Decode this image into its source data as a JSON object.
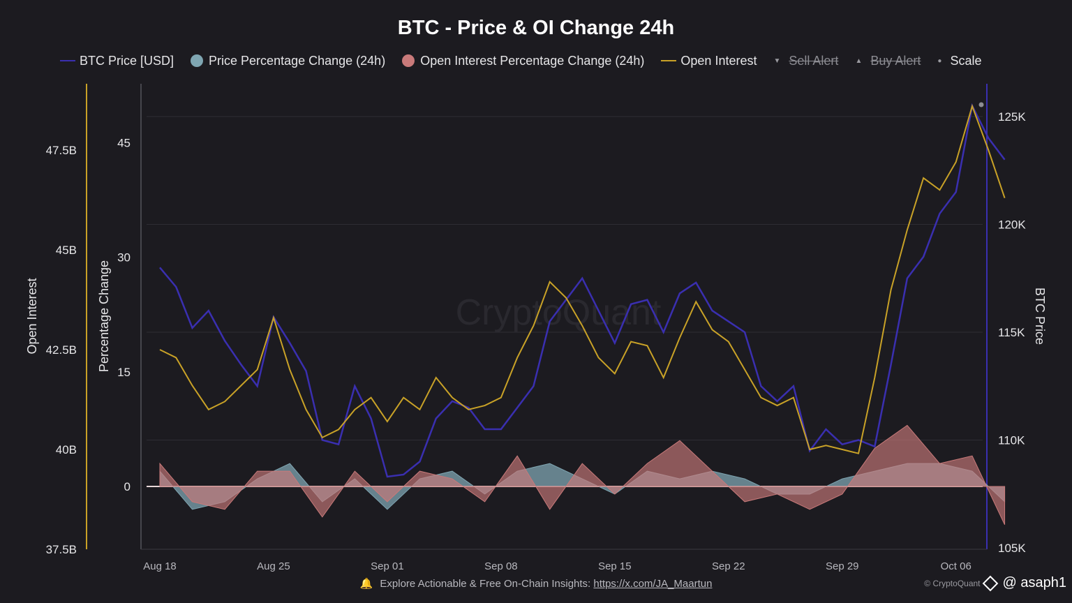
{
  "title": "BTC - Price & OI Change 24h",
  "legend": [
    {
      "label": "BTC Price [USD]",
      "kind": "line",
      "color": "#3a2fb0",
      "struck": false
    },
    {
      "label": "Price Percentage Change (24h)",
      "kind": "dot",
      "color": "#7fa6b2",
      "struck": false
    },
    {
      "label": "Open Interest Percentage Change (24h)",
      "kind": "dot",
      "color": "#c97a7a",
      "struck": false
    },
    {
      "label": "Open Interest",
      "kind": "line",
      "color": "#c9a227",
      "struck": false
    },
    {
      "label": "Sell Alert",
      "kind": "small",
      "symbol": "▼",
      "struck": true
    },
    {
      "label": "Buy Alert",
      "kind": "small",
      "symbol": "▲",
      "struck": true
    },
    {
      "label": "Scale",
      "kind": "small",
      "symbol": "●",
      "struck": false
    }
  ],
  "watermark": "CryptoQuant",
  "footer": {
    "text": "Explore Actionable & Free On-Chain Insights: ",
    "link": "https://x.com/JA_Maartun"
  },
  "credit": {
    "source": "© CryptoQuant",
    "user": "@ asaph1"
  },
  "chart_data": {
    "type": "line",
    "x_ticks": [
      "Aug 18",
      "Aug 25",
      "Sep 01",
      "Sep 08",
      "Sep 15",
      "Sep 22",
      "Sep 29",
      "Oct 06"
    ],
    "y_left_oi": {
      "label": "Open Interest",
      "ticks": [
        "37.5B",
        "40B",
        "42.5B",
        "45B",
        "47.5B"
      ],
      "range": [
        37.5,
        49.1
      ],
      "unit": "B"
    },
    "y_left_pct": {
      "label": "Percentage Change",
      "ticks": [
        "0",
        "15",
        "30",
        "45"
      ],
      "range": [
        -8,
        50.5
      ]
    },
    "y_right_price": {
      "label": "BTC Price",
      "ticks": [
        "105K",
        "110K",
        "115K",
        "120K",
        "125K"
      ],
      "range": [
        105000,
        126500
      ]
    },
    "x_range_days": [
      0,
      52
    ],
    "series": [
      {
        "name": "BTC Price [USD]",
        "axis": "price",
        "color": "#3a2fb0",
        "x": [
          0,
          1,
          2,
          3,
          4,
          5,
          6,
          7,
          8,
          9,
          10,
          11,
          12,
          13,
          14,
          15,
          16,
          17,
          18,
          19,
          20,
          21,
          22,
          23,
          24,
          25,
          26,
          27,
          28,
          29,
          30,
          31,
          32,
          33,
          34,
          35,
          36,
          37,
          38,
          39,
          40,
          41,
          42,
          43,
          44,
          45,
          46,
          47,
          48,
          49,
          50,
          51,
          52
        ],
        "y": [
          118000,
          117100,
          115200,
          116000,
          114600,
          113500,
          112500,
          115700,
          114500,
          113200,
          110000,
          109800,
          112500,
          111000,
          108300,
          108400,
          109000,
          111000,
          111800,
          111500,
          110500,
          110500,
          111500,
          112500,
          115500,
          116500,
          117500,
          116000,
          114500,
          116300,
          116500,
          115000,
          116800,
          117300,
          116000,
          115500,
          115000,
          112500,
          111800,
          112500,
          109500,
          110500,
          109800,
          110000,
          109700,
          113500,
          117500,
          118500,
          120500,
          121500,
          125500,
          124000,
          123000
        ]
      },
      {
        "name": "Open Interest",
        "axis": "oi",
        "color": "#c9a227",
        "x": [
          0,
          1,
          2,
          3,
          4,
          5,
          6,
          7,
          8,
          9,
          10,
          11,
          12,
          13,
          14,
          15,
          16,
          17,
          18,
          19,
          20,
          21,
          22,
          23,
          24,
          25,
          26,
          27,
          28,
          29,
          30,
          31,
          32,
          33,
          34,
          35,
          36,
          37,
          38,
          39,
          40,
          41,
          42,
          43,
          44,
          45,
          46,
          47,
          48,
          49,
          50,
          51,
          52
        ],
        "y": [
          42.5,
          42.3,
          41.6,
          41.0,
          41.2,
          41.6,
          42.0,
          43.3,
          42.0,
          41.0,
          40.3,
          40.5,
          41.0,
          41.3,
          40.7,
          41.3,
          41.0,
          41.8,
          41.3,
          41.0,
          41.1,
          41.3,
          42.3,
          43.1,
          44.2,
          43.8,
          43.1,
          42.3,
          41.9,
          42.7,
          42.6,
          41.8,
          42.8,
          43.7,
          43.0,
          42.7,
          42.0,
          41.3,
          41.1,
          41.3,
          40.0,
          40.1,
          40.0,
          39.9,
          41.8,
          44.0,
          45.5,
          46.8,
          46.5,
          47.2,
          48.6,
          47.5,
          46.3
        ]
      },
      {
        "name": "Price Percentage Change (24h)",
        "axis": "pct",
        "color": "#7fa6b2",
        "x": [
          0,
          2,
          4,
          6,
          8,
          10,
          12,
          14,
          16,
          18,
          20,
          22,
          24,
          26,
          28,
          30,
          32,
          34,
          36,
          38,
          40,
          42,
          44,
          46,
          48,
          50,
          52
        ],
        "y": [
          2,
          -3,
          -2,
          1,
          3,
          -2,
          1,
          -3,
          1,
          2,
          -1,
          2,
          3,
          1,
          -1,
          2,
          1,
          2,
          1,
          -1,
          -1,
          1,
          2,
          3,
          3,
          2,
          -2
        ]
      },
      {
        "name": "Open Interest Percentage Change (24h)",
        "axis": "pct",
        "color": "#c97a7a",
        "x": [
          0,
          2,
          4,
          6,
          8,
          10,
          12,
          14,
          16,
          18,
          20,
          22,
          24,
          26,
          28,
          30,
          32,
          34,
          36,
          38,
          40,
          42,
          44,
          46,
          48,
          50,
          52
        ],
        "y": [
          3,
          -2,
          -3,
          2,
          2,
          -4,
          2,
          -2,
          2,
          1,
          -2,
          4,
          -3,
          3,
          -1,
          3,
          6,
          2,
          -2,
          -1,
          -3,
          -1,
          5,
          8,
          3,
          4,
          -5
        ]
      }
    ]
  }
}
